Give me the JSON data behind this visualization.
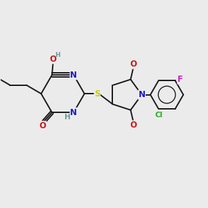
{
  "bg_color": "#ebebeb",
  "bond_color": "#1a1a1a",
  "bond_width": 1.4,
  "atom_colors": {
    "N": "#1a1acc",
    "O": "#cc1a1a",
    "S": "#cccc00",
    "Cl": "#22aa22",
    "F": "#cc22cc",
    "C": "#1a1a1a",
    "H": "#6a9a9a"
  },
  "font_size": 8.5,
  "fig_size": [
    3.0,
    3.0
  ],
  "dpi": 100,
  "xlim": [
    0,
    10
  ],
  "ylim": [
    0,
    10
  ]
}
